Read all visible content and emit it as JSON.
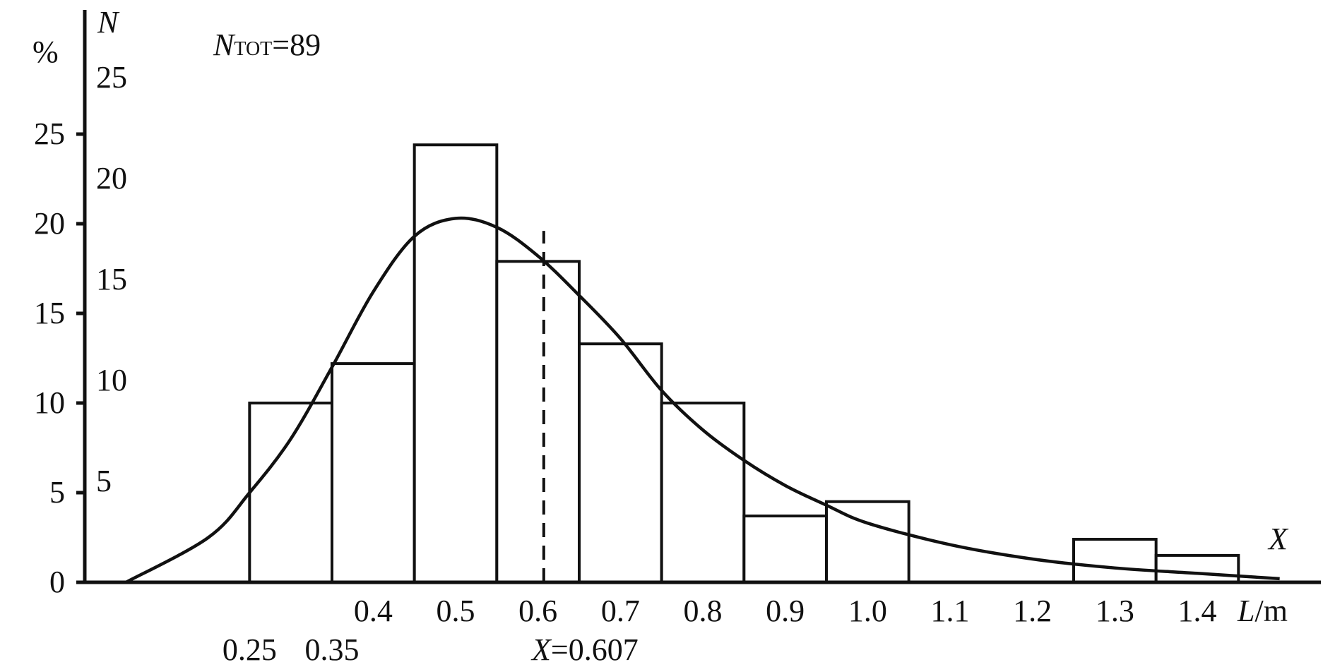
{
  "chart_data": {
    "type": "bar",
    "histogram": true,
    "n_total_label": "=89",
    "n_total_symbol": "N",
    "n_total_subscript": "TOT",
    "y_left": {
      "label": "%",
      "ticks": [
        "0",
        "5",
        "10",
        "15",
        "20",
        "25"
      ],
      "ylim": [
        0,
        25
      ]
    },
    "y_right": {
      "label": "N",
      "ticks": [
        "5",
        "10",
        "15",
        "20",
        "25"
      ]
    },
    "x_axis": {
      "label_italic": "L",
      "label_rest": "/m",
      "end_label": "X",
      "ticks": [
        "0.4",
        "0.5",
        "0.6",
        "0.7",
        "0.8",
        "0.9",
        "1.0",
        "1.1",
        "1.2",
        "1.3",
        "1.4"
      ],
      "lower_ticks": [
        "0.25",
        "0.35"
      ],
      "xlim": [
        0.05,
        1.55
      ]
    },
    "bins": [
      {
        "left": 0.25,
        "right": 0.35,
        "percent": 10.0
      },
      {
        "left": 0.35,
        "right": 0.45,
        "percent": 12.2
      },
      {
        "left": 0.45,
        "right": 0.55,
        "percent": 24.4
      },
      {
        "left": 0.55,
        "right": 0.65,
        "percent": 17.9
      },
      {
        "left": 0.65,
        "right": 0.75,
        "percent": 13.3
      },
      {
        "left": 0.75,
        "right": 0.85,
        "percent": 10.0
      },
      {
        "left": 0.85,
        "right": 0.95,
        "percent": 3.7
      },
      {
        "left": 0.95,
        "right": 1.05,
        "percent": 4.5
      },
      {
        "left": 1.25,
        "right": 1.35,
        "percent": 2.4
      },
      {
        "left": 1.35,
        "right": 1.45,
        "percent": 1.5
      }
    ],
    "fit_curve": {
      "x": [
        0.1,
        0.2,
        0.25,
        0.3,
        0.35,
        0.4,
        0.45,
        0.5,
        0.55,
        0.6,
        0.65,
        0.7,
        0.75,
        0.8,
        0.85,
        0.9,
        0.95,
        1.0,
        1.1,
        1.2,
        1.3,
        1.4,
        1.5
      ],
      "y": [
        0.0,
        2.5,
        5.0,
        8.0,
        12.0,
        16.2,
        19.3,
        20.3,
        19.8,
        18.2,
        16.0,
        13.6,
        10.7,
        8.5,
        6.8,
        5.4,
        4.3,
        3.3,
        2.1,
        1.3,
        0.8,
        0.5,
        0.2
      ]
    },
    "mean": {
      "value": 0.607,
      "label_italic": "X",
      "label_rest": "=0.607"
    }
  }
}
